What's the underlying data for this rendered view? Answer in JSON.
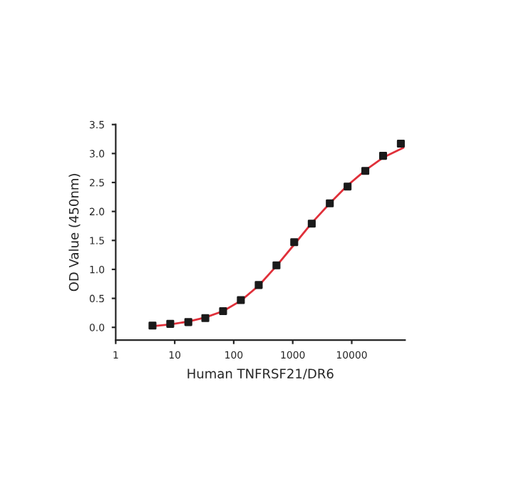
{
  "chart_data": {
    "type": "scatter",
    "xlabel": "Human TNFRSF21/DR6",
    "ylabel": "OD Value (450nm)",
    "log": "x",
    "grid": false,
    "xlim": [
      1,
      80000
    ],
    "xticks": [
      1,
      10,
      100,
      1000,
      10000
    ],
    "ylim": [
      -0.22,
      3.5
    ],
    "yticks": [
      {
        "value": 0,
        "label": "0.0"
      },
      {
        "value": 0.5,
        "label": "0.5"
      },
      {
        "value": 1,
        "label": "1.0"
      },
      {
        "value": 1.5,
        "label": "1.5"
      },
      {
        "value": 2,
        "label": "2.0"
      },
      {
        "value": 2.5,
        "label": "2.5"
      },
      {
        "value": 3,
        "label": "3.0"
      },
      {
        "value": 3.5,
        "label": "3.5"
      }
    ],
    "series": [
      {
        "type": "line",
        "color": "#e0303a",
        "marker": "none",
        "x": [
          4.2,
          8.4,
          17,
          33,
          66,
          132,
          265,
          530,
          1060,
          2100,
          4250,
          8500,
          17000,
          34000,
          75000
        ],
        "values": [
          0.02,
          0.05,
          0.1,
          0.17,
          0.28,
          0.46,
          0.72,
          1.06,
          1.43,
          1.8,
          2.14,
          2.45,
          2.71,
          2.93,
          3.1
        ]
      },
      {
        "color": "#1a1a1a",
        "marker": "square",
        "x": [
          4.2,
          8.4,
          17,
          33,
          66,
          132,
          265,
          530,
          1060,
          2100,
          4250,
          8500,
          17000,
          34000,
          68000
        ],
        "values": [
          0.03,
          0.06,
          0.09,
          0.16,
          0.28,
          0.47,
          0.73,
          1.07,
          1.47,
          1.79,
          2.14,
          2.43,
          2.7,
          2.96,
          3.17
        ]
      }
    ]
  }
}
